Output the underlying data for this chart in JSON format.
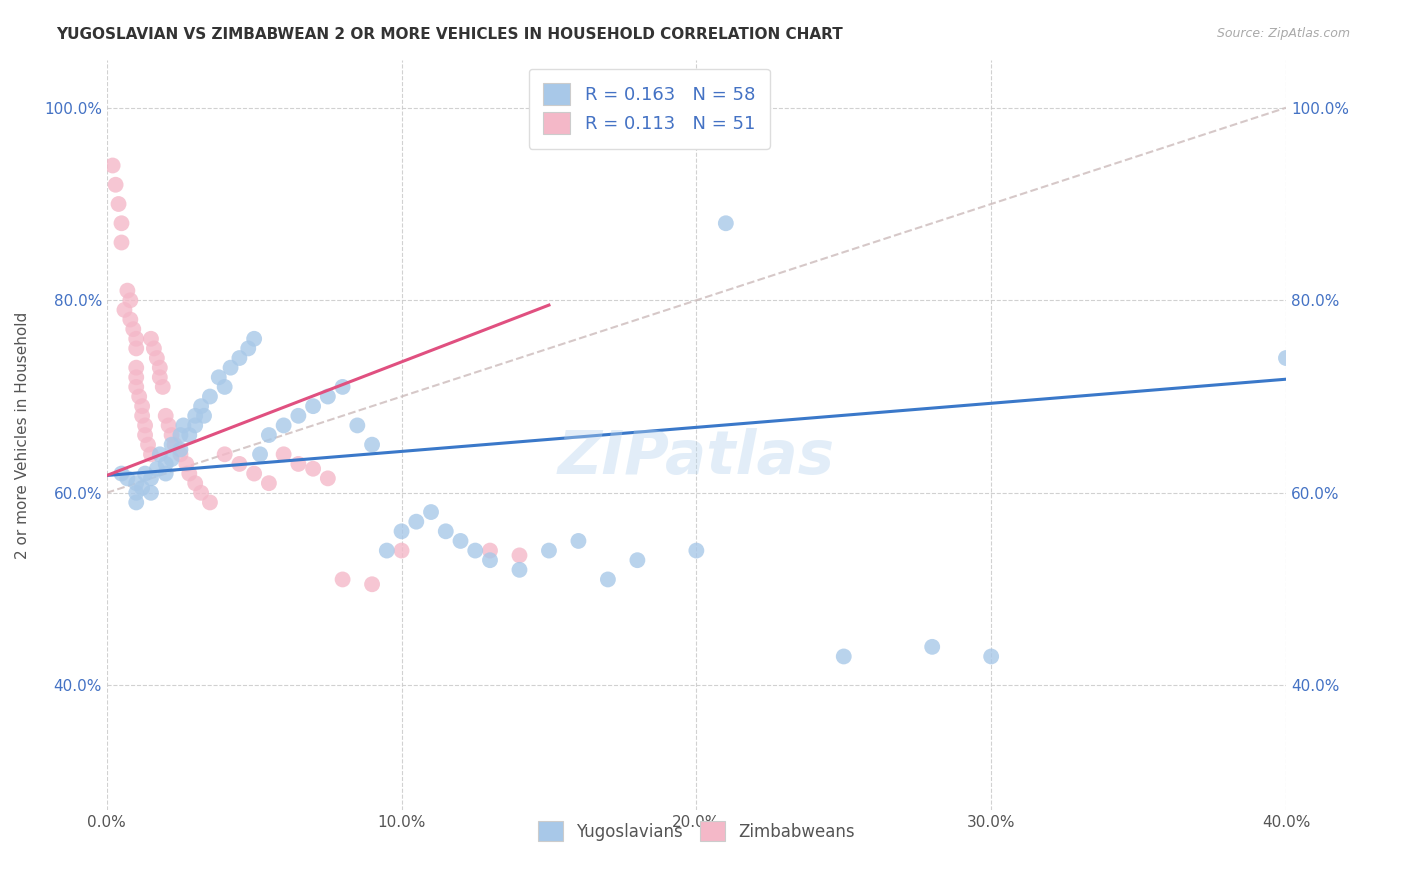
{
  "title": "YUGOSLAVIAN VS ZIMBABWEAN 2 OR MORE VEHICLES IN HOUSEHOLD CORRELATION CHART",
  "source": "Source: ZipAtlas.com",
  "ylabel": "2 or more Vehicles in Household",
  "xlim": [
    0.0,
    0.4
  ],
  "ylim": [
    0.27,
    1.05
  ],
  "xticks": [
    0.0,
    0.1,
    0.2,
    0.3,
    0.4
  ],
  "xtick_labels": [
    "0.0%",
    "10.0%",
    "20.0%",
    "30.0%",
    "40.0%"
  ],
  "yticks": [
    0.4,
    0.6,
    0.8,
    1.0
  ],
  "ytick_labels": [
    "40.0%",
    "60.0%",
    "80.0%",
    "100.0%"
  ],
  "legend1_label": "R = 0.163   N = 58",
  "legend2_label": "R = 0.113   N = 51",
  "blue_color": "#a8c8e8",
  "pink_color": "#f4b8c8",
  "blue_line_color": "#3a78c9",
  "pink_line_color": "#e05080",
  "watermark": "ZIPatlas",
  "blue_line_x": [
    0.0,
    0.4
  ],
  "blue_line_y": [
    0.618,
    0.718
  ],
  "pink_line_x": [
    0.0,
    0.15
  ],
  "pink_line_y": [
    0.618,
    0.795
  ],
  "ref_line_x": [
    0.0,
    0.4
  ],
  "ref_line_y": [
    0.6,
    1.0
  ],
  "yug_x": [
    0.005,
    0.007,
    0.01,
    0.01,
    0.01,
    0.012,
    0.013,
    0.015,
    0.015,
    0.017,
    0.018,
    0.02,
    0.02,
    0.022,
    0.022,
    0.025,
    0.025,
    0.026,
    0.028,
    0.03,
    0.03,
    0.032,
    0.033,
    0.035,
    0.038,
    0.04,
    0.042,
    0.045,
    0.048,
    0.05,
    0.052,
    0.055,
    0.06,
    0.065,
    0.07,
    0.075,
    0.08,
    0.085,
    0.09,
    0.095,
    0.1,
    0.105,
    0.11,
    0.115,
    0.12,
    0.125,
    0.13,
    0.14,
    0.15,
    0.16,
    0.17,
    0.18,
    0.2,
    0.21,
    0.25,
    0.28,
    0.3,
    0.4
  ],
  "yug_y": [
    0.62,
    0.615,
    0.61,
    0.6,
    0.59,
    0.605,
    0.62,
    0.615,
    0.6,
    0.625,
    0.64,
    0.63,
    0.62,
    0.65,
    0.635,
    0.66,
    0.645,
    0.67,
    0.66,
    0.68,
    0.67,
    0.69,
    0.68,
    0.7,
    0.72,
    0.71,
    0.73,
    0.74,
    0.75,
    0.76,
    0.64,
    0.66,
    0.67,
    0.68,
    0.69,
    0.7,
    0.71,
    0.67,
    0.65,
    0.54,
    0.56,
    0.57,
    0.58,
    0.56,
    0.55,
    0.54,
    0.53,
    0.52,
    0.54,
    0.55,
    0.51,
    0.53,
    0.54,
    0.88,
    0.43,
    0.44,
    0.43,
    0.74
  ],
  "zim_x": [
    0.002,
    0.003,
    0.004,
    0.005,
    0.005,
    0.006,
    0.007,
    0.008,
    0.008,
    0.009,
    0.01,
    0.01,
    0.01,
    0.01,
    0.01,
    0.011,
    0.012,
    0.012,
    0.013,
    0.013,
    0.014,
    0.015,
    0.015,
    0.016,
    0.017,
    0.018,
    0.018,
    0.019,
    0.02,
    0.021,
    0.022,
    0.023,
    0.025,
    0.027,
    0.028,
    0.03,
    0.032,
    0.035,
    0.04,
    0.045,
    0.05,
    0.055,
    0.06,
    0.065,
    0.07,
    0.075,
    0.08,
    0.09,
    0.1,
    0.13,
    0.14
  ],
  "zim_y": [
    0.94,
    0.92,
    0.9,
    0.88,
    0.86,
    0.79,
    0.81,
    0.8,
    0.78,
    0.77,
    0.76,
    0.75,
    0.73,
    0.72,
    0.71,
    0.7,
    0.69,
    0.68,
    0.67,
    0.66,
    0.65,
    0.64,
    0.76,
    0.75,
    0.74,
    0.73,
    0.72,
    0.71,
    0.68,
    0.67,
    0.66,
    0.65,
    0.64,
    0.63,
    0.62,
    0.61,
    0.6,
    0.59,
    0.64,
    0.63,
    0.62,
    0.61,
    0.64,
    0.63,
    0.625,
    0.615,
    0.51,
    0.505,
    0.54,
    0.54,
    0.535
  ]
}
